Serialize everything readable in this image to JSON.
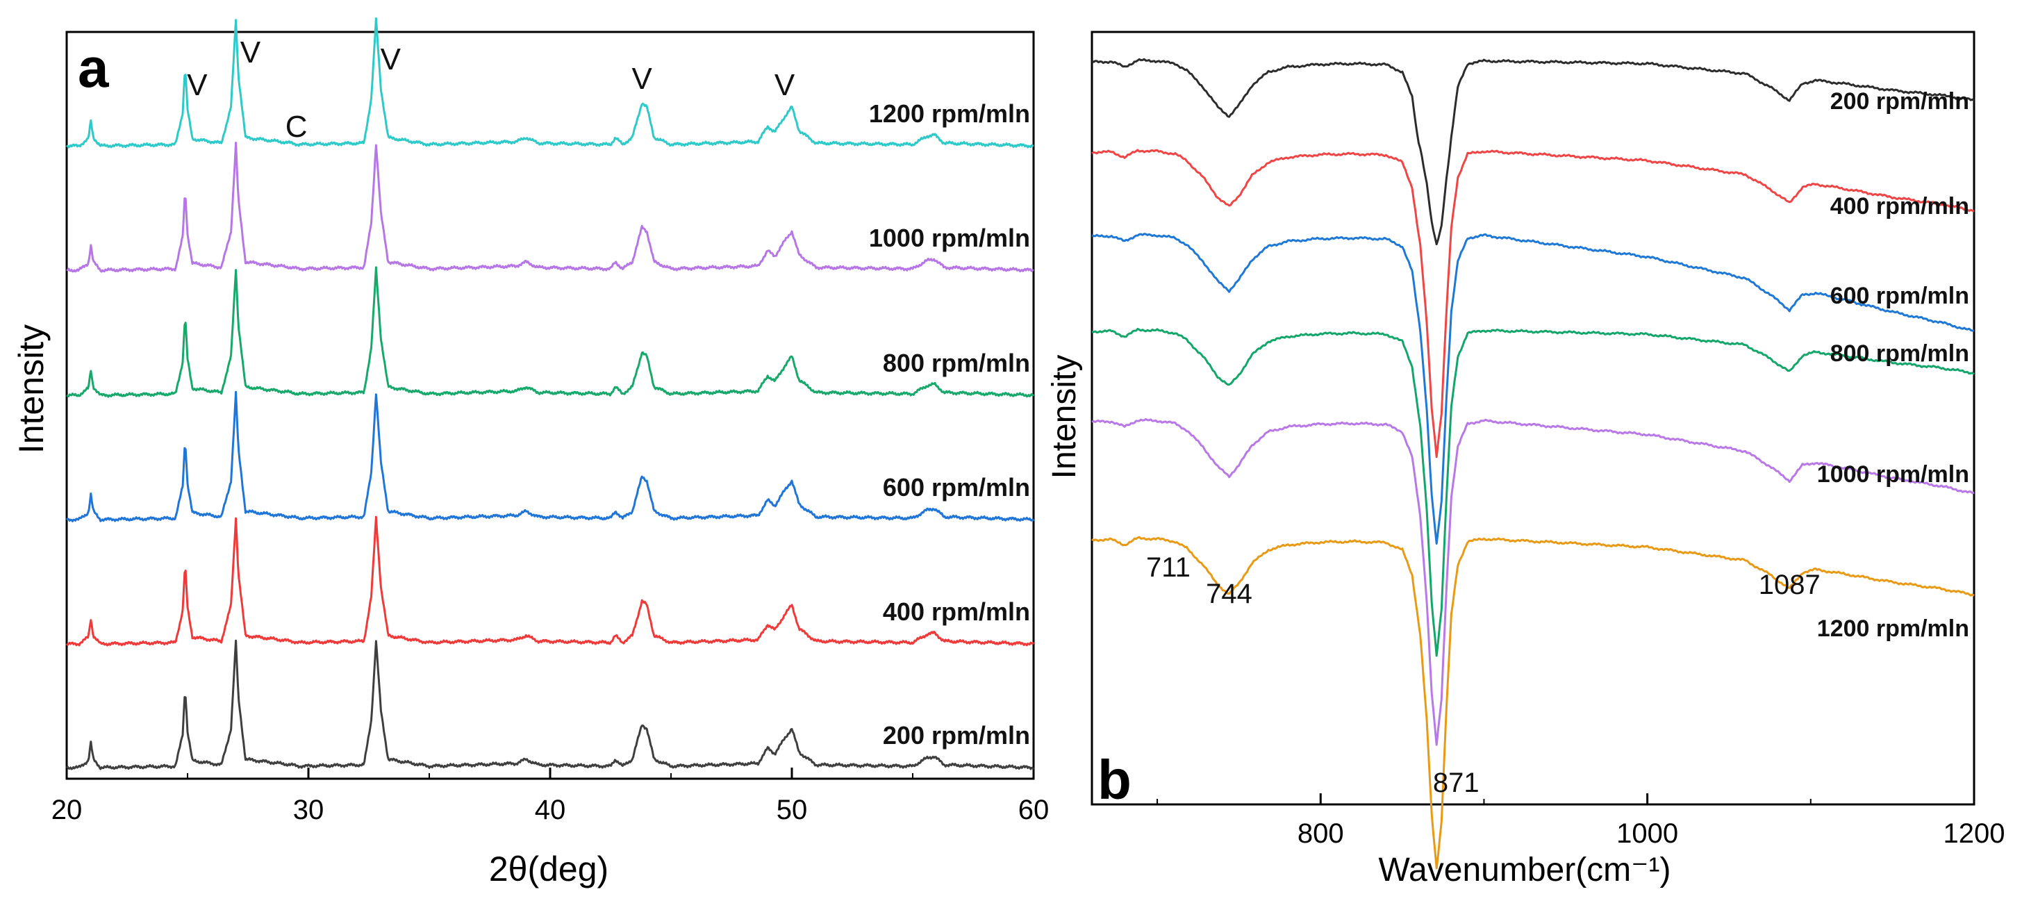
{
  "chart_data": [
    {
      "panel": "a",
      "type": "line",
      "xlabel": "2θ(deg)",
      "ylabel": "Intensity",
      "xlim": [
        20,
        60
      ],
      "xticks": [
        20,
        30,
        40,
        50,
        60
      ],
      "series_offset": 1.0,
      "series_scale": 2.9,
      "base_scale": 0.1,
      "base_points": [
        [
          20.0,
          0.04
        ],
        [
          20.5,
          0.04
        ],
        [
          20.9,
          0.09
        ],
        [
          21.0,
          0.22
        ],
        [
          21.1,
          0.1
        ],
        [
          21.4,
          0.04
        ],
        [
          24.5,
          0.05
        ],
        [
          24.8,
          0.28
        ],
        [
          24.9,
          0.62
        ],
        [
          25.0,
          0.3
        ],
        [
          25.2,
          0.09
        ],
        [
          26.4,
          0.06
        ],
        [
          26.8,
          0.32
        ],
        [
          27.0,
          0.95
        ],
        [
          27.1,
          0.55
        ],
        [
          27.4,
          0.1
        ],
        [
          29.3,
          0.06
        ],
        [
          29.6,
          0.05
        ],
        [
          32.3,
          0.06
        ],
        [
          32.6,
          0.38
        ],
        [
          32.8,
          0.95
        ],
        [
          33.0,
          0.45
        ],
        [
          33.3,
          0.1
        ],
        [
          35.0,
          0.05
        ],
        [
          38.6,
          0.07
        ],
        [
          39.0,
          0.1
        ],
        [
          39.5,
          0.06
        ],
        [
          42.5,
          0.05
        ],
        [
          42.7,
          0.1
        ],
        [
          43.0,
          0.05
        ],
        [
          43.4,
          0.1
        ],
        [
          43.8,
          0.35
        ],
        [
          44.0,
          0.32
        ],
        [
          44.3,
          0.1
        ],
        [
          45.0,
          0.05
        ],
        [
          48.6,
          0.07
        ],
        [
          49.0,
          0.18
        ],
        [
          49.3,
          0.14
        ],
        [
          49.7,
          0.25
        ],
        [
          50.0,
          0.32
        ],
        [
          50.3,
          0.15
        ],
        [
          51.0,
          0.06
        ],
        [
          55.0,
          0.05
        ],
        [
          55.6,
          0.11
        ],
        [
          55.9,
          0.12
        ],
        [
          56.3,
          0.06
        ],
        [
          60.0,
          0.04
        ]
      ],
      "series": [
        {
          "name": "200 rpm/mln",
          "label": "200 rpm/mln",
          "color": "#3f3f3f"
        },
        {
          "name": "400 rpm/mln",
          "label": "400 rpm/mln",
          "color": "#f03a3a"
        },
        {
          "name": "600 rpm/mln",
          "label": "600 rpm/mln",
          "color": "#1f75d8"
        },
        {
          "name": "800 rpm/mln",
          "label": "800 rpm/mln",
          "color": "#17a86b"
        },
        {
          "name": "1000 rpm/mln",
          "label": "1000 rpm/mln",
          "color": "#b676e6"
        },
        {
          "name": "1200 rpm/mln",
          "label": "1200 rpm/mln",
          "color": "#2ec9c9"
        }
      ],
      "annotations": [
        {
          "text": "V",
          "x": 25.4
        },
        {
          "text": "V",
          "x": 27.6
        },
        {
          "text": "C",
          "x": 29.5
        },
        {
          "text": "V",
          "x": 33.4
        },
        {
          "text": "V",
          "x": 43.8
        },
        {
          "text": "V",
          "x": 49.7
        }
      ]
    },
    {
      "panel": "b",
      "type": "line",
      "xlabel": "Wavenumber(cm⁻¹)",
      "ylabel": "Intensity",
      "xlim": [
        660,
        1200
      ],
      "xticks": [
        800,
        1000,
        1200
      ],
      "series_offset": 1.0,
      "series_scale": 5.0,
      "base_points": [
        [
          660,
          -0.15
        ],
        [
          672,
          -0.14
        ],
        [
          680,
          -0.3
        ],
        [
          688,
          -0.1
        ],
        [
          700,
          -0.12
        ],
        [
          711,
          -0.2
        ],
        [
          718,
          -0.4
        ],
        [
          728,
          -0.9
        ],
        [
          737,
          -1.5
        ],
        [
          744,
          -1.78
        ],
        [
          750,
          -1.45
        ],
        [
          758,
          -0.85
        ],
        [
          768,
          -0.45
        ],
        [
          780,
          -0.3
        ],
        [
          800,
          -0.22
        ],
        [
          820,
          -0.2
        ],
        [
          840,
          -0.23
        ],
        [
          850,
          -0.45
        ],
        [
          856,
          -1.2
        ],
        [
          861,
          -3.0
        ],
        [
          865,
          -5.6
        ],
        [
          868,
          -8.4
        ],
        [
          871,
          -10.0
        ],
        [
          874,
          -8.6
        ],
        [
          877,
          -5.2
        ],
        [
          880,
          -2.4
        ],
        [
          884,
          -0.9
        ],
        [
          890,
          -0.2
        ],
        [
          900,
          -0.12
        ],
        [
          940,
          -0.15
        ],
        [
          1000,
          -0.2
        ],
        [
          1040,
          -0.4
        ],
        [
          1060,
          -0.5
        ],
        [
          1075,
          -0.9
        ],
        [
          1087,
          -1.3
        ],
        [
          1095,
          -0.8
        ],
        [
          1103,
          -0.7
        ],
        [
          1120,
          -0.8
        ],
        [
          1150,
          -1.0
        ],
        [
          1180,
          -1.15
        ],
        [
          1200,
          -1.3
        ]
      ],
      "series": [
        {
          "name": "200 rpm/mln",
          "label": "200 rpm/mln",
          "color": "#2c2c2c",
          "depth": 0.42,
          "tilt": 0.0
        },
        {
          "name": "400 rpm/mln",
          "label": "400 rpm/mln",
          "color": "#f04545",
          "depth": 0.9,
          "tilt": 0.3
        },
        {
          "name": "600 rpm/mln",
          "label": "600 rpm/mln",
          "color": "#1e78d6",
          "depth": 0.92,
          "tilt": 0.85
        },
        {
          "name": "800 rpm/mln",
          "label": "800 rpm/mln",
          "color": "#13a66b",
          "depth": 0.98,
          "tilt": 0.05
        },
        {
          "name": "1000 rpm/mln",
          "label": "1000 rpm/mln",
          "color": "#b878e8",
          "depth": 0.98,
          "tilt": 0.5
        },
        {
          "name": "1200 rpm/mln",
          "label": "1200 rpm/mln",
          "color": "#e89a14",
          "depth": 1.0,
          "tilt": 0.25
        }
      ],
      "annotations": [
        {
          "text": "711",
          "x": 711
        },
        {
          "text": "744",
          "x": 744
        },
        {
          "text": "871",
          "x": 871
        },
        {
          "text": "1087",
          "x": 1087
        }
      ]
    }
  ]
}
